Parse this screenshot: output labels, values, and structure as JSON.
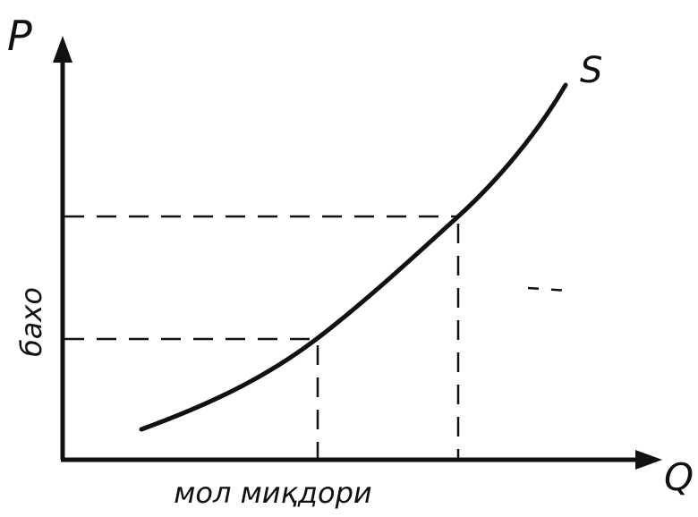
{
  "labels": {
    "y_axis_letter": "P",
    "curve": "S",
    "x_axis_letter": "Q",
    "y_axis_title": "бахо",
    "x_axis_title": "мол миқдори"
  }
}
